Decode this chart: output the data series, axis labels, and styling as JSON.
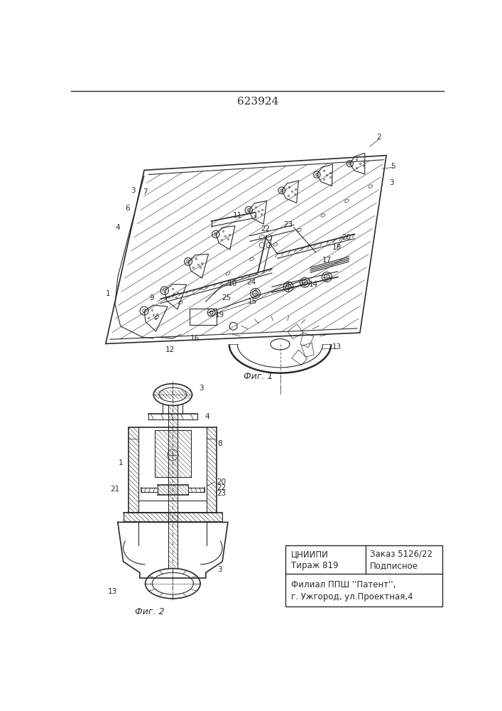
{
  "title": "623924",
  "fig1_caption": "Фиг. 1",
  "fig2_caption": "Фиг. 2",
  "footer_left_line1": "ЦНИИПИ",
  "footer_left_line2": "Тираж 819",
  "footer_right_line1": "Заказ 5126/22",
  "footer_right_line2": "Подписное",
  "footer_bottom_line1": "Филиал ППШ ''Патент'',",
  "footer_bottom_line2": "г. Ужгород, ул.Проектная,4",
  "bg_color": "#ffffff",
  "line_color": "#2a2a2a"
}
